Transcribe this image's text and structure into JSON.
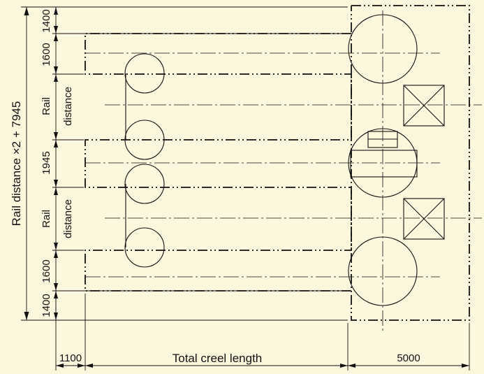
{
  "colors": {
    "background": "#fdf7dd",
    "line": "#111111"
  },
  "dimensions": {
    "overall": "Rail distance ×2 + 7945",
    "seg_top": "1400",
    "seg_upper": "1600",
    "rail_1": [
      "Rail",
      "distance"
    ],
    "seg_mid": "1945",
    "rail_2": [
      "Rail",
      "distance"
    ],
    "seg_lower": "1600",
    "seg_bottom": "1400",
    "bottom_left": "1100",
    "bottom_mid": "Total creel length",
    "bottom_right": "5000"
  }
}
